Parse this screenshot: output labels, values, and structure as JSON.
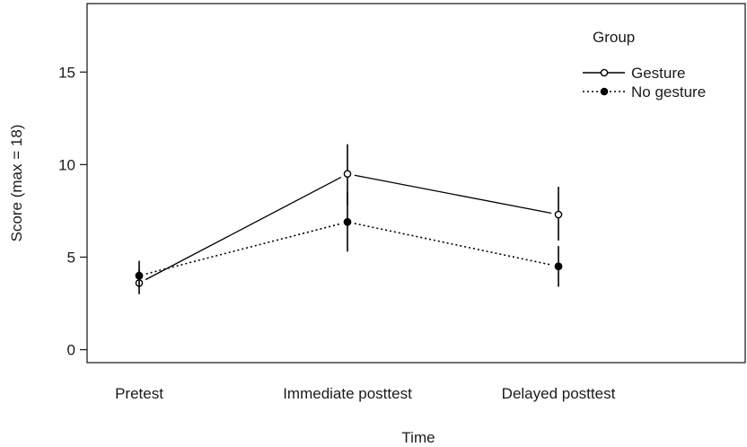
{
  "chart_data": {
    "type": "line",
    "title": "",
    "xlabel": "Time",
    "ylabel": "Score (max = 18)",
    "ylim": [
      -0.7,
      18.7
    ],
    "yticks": [
      0,
      5,
      10,
      15
    ],
    "categories": [
      "Pretest",
      "Immediate posttest",
      "Delayed posttest"
    ],
    "legend": {
      "title": "Group",
      "position": "top-right"
    },
    "series": [
      {
        "name": "Gesture",
        "marker": "open-circle",
        "line_style": "solid",
        "values": [
          3.6,
          9.5,
          7.3
        ],
        "error_low": [
          3.0,
          7.8,
          5.9
        ],
        "error_high": [
          4.3,
          11.1,
          8.8
        ]
      },
      {
        "name": "No gesture",
        "marker": "filled-circle",
        "line_style": "dotted",
        "values": [
          4.0,
          6.9,
          4.5
        ],
        "error_low": [
          3.4,
          5.3,
          3.4
        ],
        "error_high": [
          4.8,
          8.5,
          5.6
        ]
      }
    ],
    "grid": false
  }
}
